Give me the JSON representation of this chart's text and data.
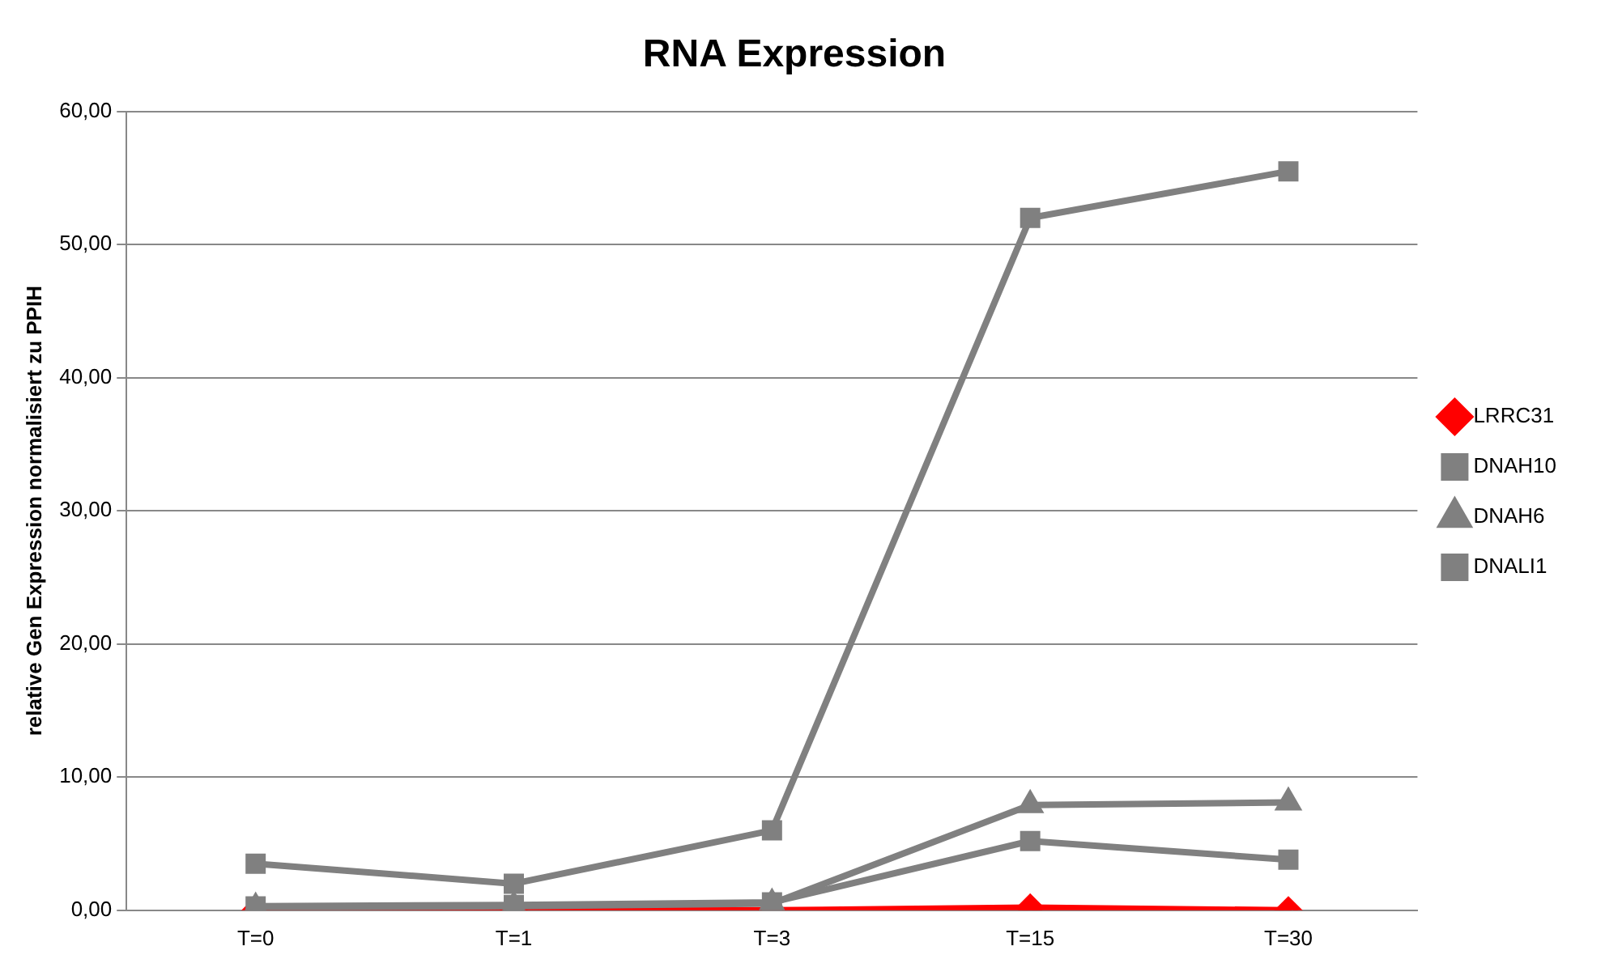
{
  "chart_data": {
    "type": "line",
    "title": "RNA Expression",
    "ylabel": "relative Gen Expression normalisiert zu PPIH",
    "categories": [
      "T=0",
      "T=1",
      "T=3",
      "T=15",
      "T=30"
    ],
    "ylim": [
      0,
      60
    ],
    "yticks": [
      {
        "value": 0,
        "label": "0,00"
      },
      {
        "value": 10,
        "label": "10,00"
      },
      {
        "value": 20,
        "label": "20,00"
      },
      {
        "value": 30,
        "label": "30,00"
      },
      {
        "value": 40,
        "label": "40,00"
      },
      {
        "value": 50,
        "label": "50,00"
      },
      {
        "value": 60,
        "label": "60,00"
      }
    ],
    "grid": "y",
    "legend": "right",
    "line_style": "solid",
    "series": [
      {
        "name": "LRRC31",
        "color": "#ff0000",
        "marker": "diamond",
        "values": [
          0,
          0,
          0,
          0.2,
          0
        ]
      },
      {
        "name": "DNAH10",
        "color": "#808080",
        "marker": "square",
        "values": [
          0.3,
          0.4,
          0.6,
          5.2,
          3.8
        ]
      },
      {
        "name": "DNAH6",
        "color": "#808080",
        "marker": "triangle",
        "values": [
          0.2,
          0.3,
          0.5,
          7.9,
          8.1
        ]
      },
      {
        "name": "DNALI1",
        "color": "#808080",
        "marker": "square",
        "values": [
          3.5,
          2.0,
          6.0,
          52.0,
          55.5
        ]
      }
    ]
  }
}
